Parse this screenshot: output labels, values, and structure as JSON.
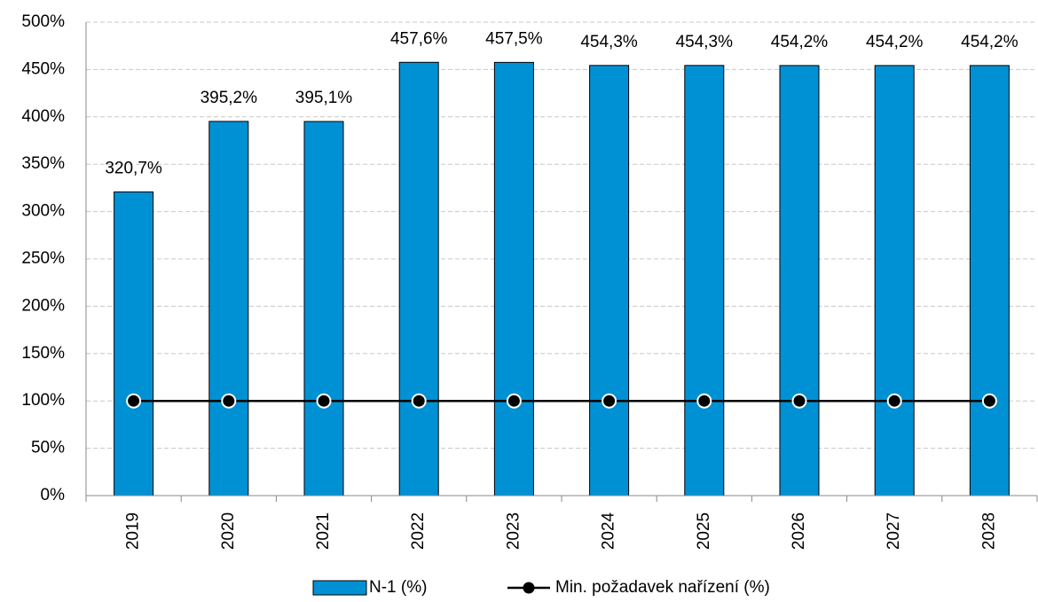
{
  "chart_data": {
    "type": "bar",
    "categories": [
      "2019",
      "2020",
      "2021",
      "2022",
      "2023",
      "2024",
      "2025",
      "2026",
      "2027",
      "2028"
    ],
    "series": [
      {
        "name": "N-1 (%)",
        "type": "bar",
        "color": "#0091d4",
        "values": [
          320.7,
          395.2,
          395.1,
          457.6,
          457.5,
          454.3,
          454.3,
          454.2,
          454.2,
          454.2
        ],
        "value_labels": [
          "320,7%",
          "395,2%",
          "395,1%",
          "457,6%",
          "457,5%",
          "454,3%",
          "454,3%",
          "454,2%",
          "454,2%",
          "454,2%"
        ]
      },
      {
        "name": "Min. požadavek nařízení (%)",
        "type": "line",
        "color": "#000000",
        "values": [
          100,
          100,
          100,
          100,
          100,
          100,
          100,
          100,
          100,
          100
        ]
      }
    ],
    "ylim": [
      0,
      500
    ],
    "yticks": [
      {
        "value": 0,
        "label": "0%"
      },
      {
        "value": 50,
        "label": "50%"
      },
      {
        "value": 100,
        "label": "100%"
      },
      {
        "value": 150,
        "label": "150%"
      },
      {
        "value": 200,
        "label": "200%"
      },
      {
        "value": 250,
        "label": "250%"
      },
      {
        "value": 300,
        "label": "300%"
      },
      {
        "value": 350,
        "label": "350%"
      },
      {
        "value": 400,
        "label": "400%"
      },
      {
        "value": 450,
        "label": "450%"
      },
      {
        "value": 500,
        "label": "500%"
      }
    ],
    "grid": true,
    "legend": "bottom"
  }
}
